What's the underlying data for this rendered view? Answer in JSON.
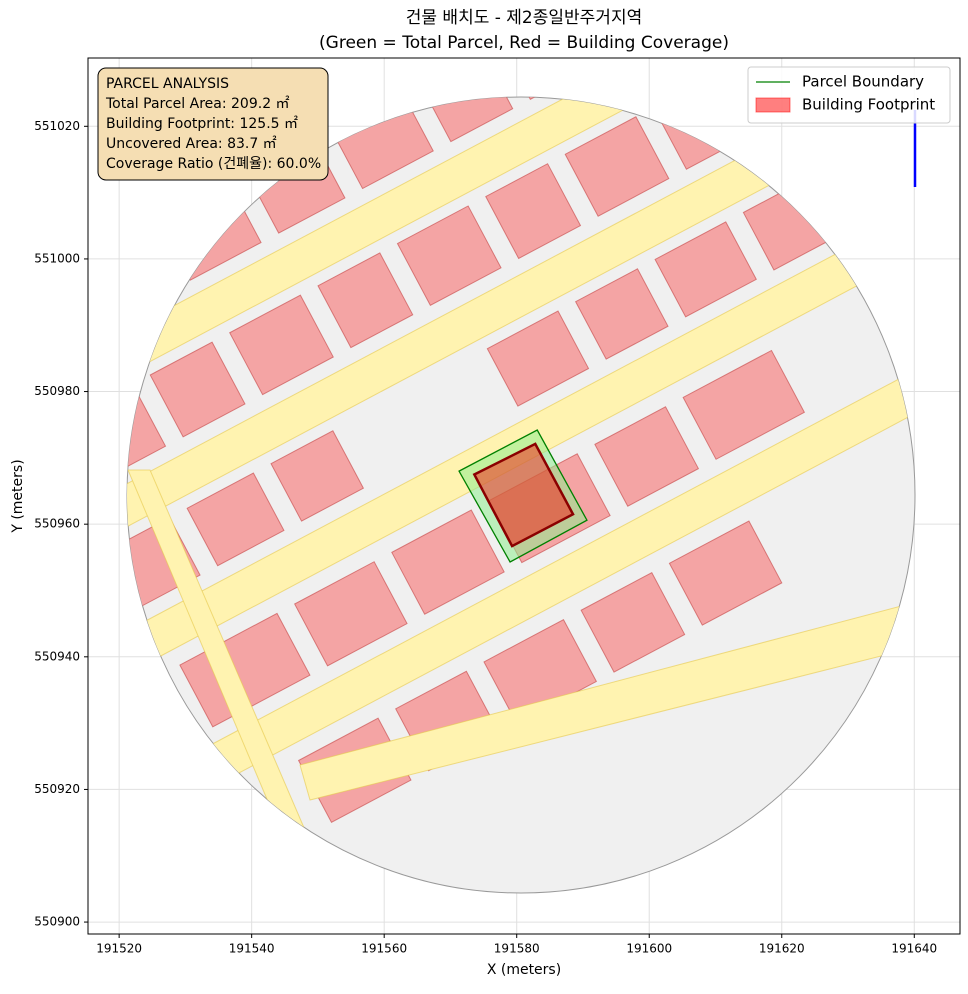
{
  "chart_data": {
    "type": "map",
    "title": "건물 배치도 - 제2종일반주거지역",
    "subtitle": "(Green = Total Parcel, Red = Building Coverage)",
    "x_label": "X (meters)",
    "y_label": "Y (meters)",
    "xlim": [
      191515.3,
      191646.9
    ],
    "ylim": [
      550898.2,
      551030.3
    ],
    "xticks": [
      191520,
      191540,
      191560,
      191580,
      191600,
      191620,
      191640
    ],
    "yticks": [
      550900,
      550920,
      550940,
      550960,
      550980,
      551000,
      551020
    ],
    "grid": true,
    "legend": "upper right",
    "annotation": [
      "PARCEL ANALYSIS",
      "Total Parcel Area: 209.2 ㎡",
      "Building Footprint: 125.5 ㎡",
      "Uncovered Area: 83.7 ㎡",
      "Coverage Ratio (건폐율): 60.0%"
    ],
    "series": [
      {
        "name": "Parcel Boundary",
        "color": "#008000",
        "x": [
          191571.3,
          191583.1,
          191590.6,
          191579.0
        ],
        "y": [
          550968.0,
          550974.2,
          550960.6,
          550954.3
        ]
      },
      {
        "name": "Building Footprint",
        "color": "#ff0000",
        "x": [
          191573.6,
          191582.8,
          191588.5,
          191579.3
        ],
        "y": [
          550967.5,
          550972.1,
          550961.5,
          550956.7
        ]
      }
    ]
  }
}
